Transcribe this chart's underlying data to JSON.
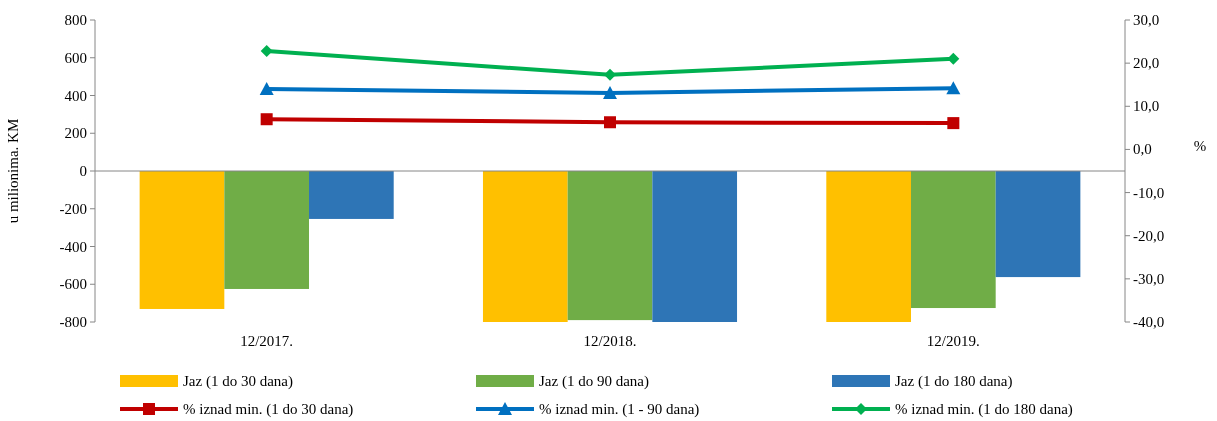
{
  "chart_data": {
    "type": "bar",
    "xlabel": null,
    "ylabel": "u milionima. KM",
    "y2label": "%",
    "categories": [
      "12/2017.",
      "12/2018.",
      "12/2019."
    ],
    "series": [
      {
        "name": "Jaz (1 do 30 dana)",
        "color": "#ffc000",
        "values": [
          -731,
          -800,
          -800
        ]
      },
      {
        "name": "Jaz (1 do 90 dana)",
        "color": "#70ad47",
        "values": [
          -625,
          -790,
          -726
        ]
      },
      {
        "name": "Jaz (1 do 180 dana)",
        "color": "#2e75b6",
        "values": [
          -254,
          -800,
          -562
        ]
      },
      {
        "name": "% iznad min. (1 do 30 dana)",
        "type": "line",
        "axis": "y2",
        "marker": "square",
        "color": "#c00000",
        "values": [
          7.0,
          6.3,
          6.1
        ]
      },
      {
        "name": "% iznad min. (1 - 90 dana)",
        "type": "line",
        "axis": "y2",
        "marker": "triangle",
        "color": "#0070c0",
        "values": [
          14.0,
          13.1,
          14.2
        ]
      },
      {
        "name": "% iznad min. (1 do 180 dana)",
        "type": "line",
        "axis": "y2",
        "marker": "diamond",
        "color": "#00b050",
        "values": [
          22.8,
          17.3,
          21.0
        ]
      }
    ],
    "ylim": [
      -800,
      800
    ],
    "yticks": [
      -800,
      -600,
      -400,
      -200,
      0,
      200,
      400,
      600,
      800
    ],
    "y2lim": [
      -40,
      30
    ],
    "y2ticks": [
      {
        "value": -40,
        "label": "-40,0"
      },
      {
        "value": -30,
        "label": "-30,0"
      },
      {
        "value": -20,
        "label": "-20,0"
      },
      {
        "value": -10,
        "label": "-10,0"
      },
      {
        "value": 0,
        "label": "0,0"
      },
      {
        "value": 10,
        "label": "10,0"
      },
      {
        "value": 20,
        "label": "20,0"
      },
      {
        "value": 30,
        "label": "30,0"
      }
    ],
    "legend": "bottom"
  }
}
